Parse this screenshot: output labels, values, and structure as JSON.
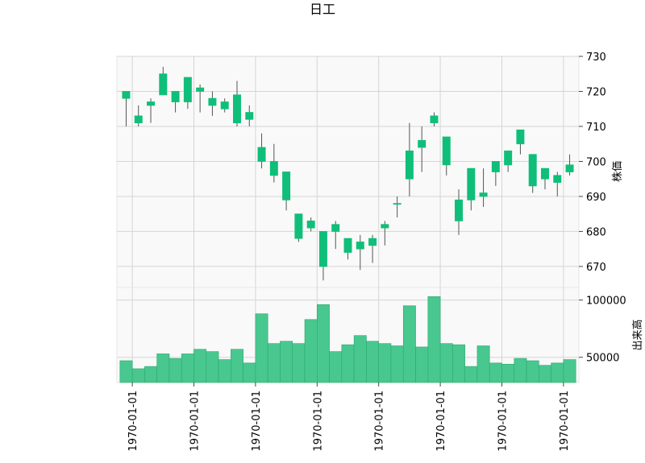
{
  "chart_data": {
    "type": "candlestick",
    "title": "日工",
    "colors": {
      "up": "#0fbf79",
      "down": "#ff3b3b",
      "vol_up": "#48c88e",
      "vol_down": "#ff6b6b",
      "panel_bg": "#f9f9f9",
      "grid": "#d5d5d5"
    },
    "price_panel": {
      "ylabel": "株価",
      "ylim": [
        664,
        730
      ],
      "yticks": [
        670,
        680,
        690,
        700,
        710,
        720,
        730
      ]
    },
    "volume_panel": {
      "ylabel": "出来高",
      "ylim": [
        28000,
        111000
      ],
      "yticks": [
        50000,
        100000
      ]
    },
    "x_tick_labels": [
      "1970-01-01",
      "1970-01-01",
      "1970-01-01",
      "1970-01-01",
      "1970-01-01",
      "1970-01-01",
      "1970-01-01",
      "1970-01-01"
    ],
    "x_tick_positions": [
      0.5,
      5.5,
      10.5,
      15.5,
      20.5,
      25.5,
      30.5,
      35.5
    ],
    "candles": [
      {
        "o": 718,
        "h": 720,
        "l": 710,
        "c": 720,
        "v": 47000
      },
      {
        "o": 711,
        "h": 716,
        "l": 710,
        "c": 713,
        "v": 40000
      },
      {
        "o": 716,
        "h": 718,
        "l": 711,
        "c": 717,
        "v": 42000
      },
      {
        "o": 719,
        "h": 727,
        "l": 719,
        "c": 725,
        "v": 53000
      },
      {
        "o": 717,
        "h": 720,
        "l": 714,
        "c": 720,
        "v": 49000
      },
      {
        "o": 717,
        "h": 724,
        "l": 715,
        "c": 724,
        "v": 53000
      },
      {
        "o": 720,
        "h": 722,
        "l": 714,
        "c": 721,
        "v": 57000
      },
      {
        "o": 716,
        "h": 720,
        "l": 713,
        "c": 718,
        "v": 55000
      },
      {
        "o": 715,
        "h": 718,
        "l": 714,
        "c": 717,
        "v": 48000
      },
      {
        "o": 711,
        "h": 723,
        "l": 710,
        "c": 719,
        "v": 57000
      },
      {
        "o": 712,
        "h": 716,
        "l": 710,
        "c": 714,
        "v": 45000
      },
      {
        "o": 700,
        "h": 708,
        "l": 698,
        "c": 704,
        "v": 88000
      },
      {
        "o": 696,
        "h": 705,
        "l": 694,
        "c": 700,
        "v": 62000
      },
      {
        "o": 689,
        "h": 697,
        "l": 686,
        "c": 697,
        "v": 64000
      },
      {
        "o": 678,
        "h": 685,
        "l": 677,
        "c": 685,
        "v": 62000
      },
      {
        "o": 681,
        "h": 684,
        "l": 680,
        "c": 683,
        "v": 83000
      },
      {
        "o": 670,
        "h": 680,
        "l": 666,
        "c": 680,
        "v": 96000
      },
      {
        "o": 680,
        "h": 683,
        "l": 675,
        "c": 682,
        "v": 55000
      },
      {
        "o": 674,
        "h": 678,
        "l": 672,
        "c": 678,
        "v": 61000
      },
      {
        "o": 675,
        "h": 679,
        "l": 669,
        "c": 677,
        "v": 69000
      },
      {
        "o": 676,
        "h": 679,
        "l": 671,
        "c": 678,
        "v": 64000
      },
      {
        "o": 681,
        "h": 683,
        "l": 676,
        "c": 682,
        "v": 62000
      },
      {
        "o": 688,
        "h": 690,
        "l": 684,
        "c": 688,
        "v": 60000
      },
      {
        "o": 695,
        "h": 711,
        "l": 690,
        "c": 703,
        "v": 95000
      },
      {
        "o": 704,
        "h": 710,
        "l": 697,
        "c": 706,
        "v": 59000
      },
      {
        "o": 711,
        "h": 714,
        "l": 710,
        "c": 713,
        "v": 103000
      },
      {
        "o": 699,
        "h": 707,
        "l": 696,
        "c": 707,
        "v": 62000
      },
      {
        "o": 683,
        "h": 692,
        "l": 679,
        "c": 689,
        "v": 61000
      },
      {
        "o": 689,
        "h": 698,
        "l": 686,
        "c": 698,
        "v": 42000
      },
      {
        "o": 690,
        "h": 698,
        "l": 687,
        "c": 691,
        "v": 60000
      },
      {
        "o": 697,
        "h": 700,
        "l": 693,
        "c": 700,
        "v": 45000
      },
      {
        "o": 699,
        "h": 703,
        "l": 697,
        "c": 703,
        "v": 44000
      },
      {
        "o": 705,
        "h": 709,
        "l": 702,
        "c": 709,
        "v": 49000
      },
      {
        "o": 693,
        "h": 702,
        "l": 691,
        "c": 702,
        "v": 47000
      },
      {
        "o": 695,
        "h": 698,
        "l": 692,
        "c": 698,
        "v": 43000
      },
      {
        "o": 694,
        "h": 697,
        "l": 690,
        "c": 696,
        "v": 45000
      },
      {
        "o": 697,
        "h": 702,
        "l": 696,
        "c": 699,
        "v": 48000
      }
    ]
  }
}
